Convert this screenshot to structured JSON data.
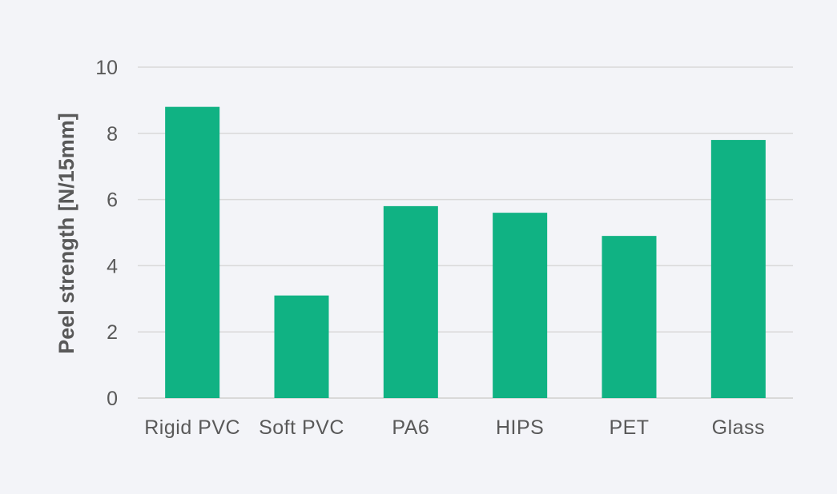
{
  "chart_data": {
    "type": "bar",
    "categories": [
      "Rigid PVC",
      "Soft PVC",
      "PA6",
      "HIPS",
      "PET",
      "Glass"
    ],
    "values": [
      8.8,
      3.1,
      5.8,
      5.6,
      4.9,
      7.8
    ],
    "ylabel": "Peel strength [N/15mm]",
    "xlabel": "",
    "ylim": [
      0,
      10
    ],
    "yticks": [
      "0",
      "2",
      "4",
      "6",
      "8",
      "10"
    ],
    "grid": true,
    "bar_color": "#10b283",
    "background_color": "#f3f4f8"
  }
}
